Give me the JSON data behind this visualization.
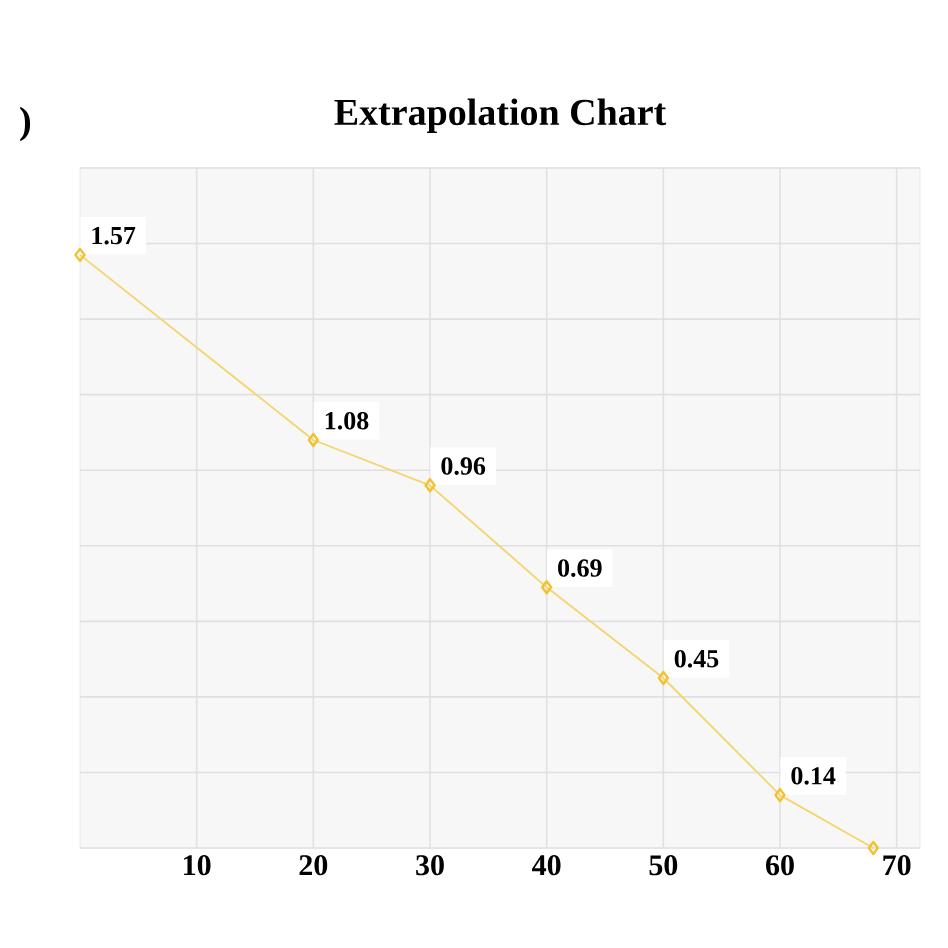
{
  "chart_data": {
    "type": "line",
    "title": "Extrapolation Chart",
    "annotations": [
      ")"
    ],
    "x": [
      0,
      20,
      30,
      40,
      50,
      60,
      68
    ],
    "series": [
      {
        "color": "#f2c12e",
        "values": [
          1.57,
          1.08,
          0.96,
          0.69,
          0.45,
          0.14,
          0
        ],
        "value_labels": [
          "1.57",
          "1.08",
          "0.96",
          "0.69",
          "0.45",
          "0.14",
          null
        ]
      }
    ],
    "xlim": [
      0,
      72
    ],
    "ylim": [
      0,
      1.8
    ],
    "xticks": [
      10,
      20,
      30,
      40,
      50,
      60,
      70
    ],
    "yticks": [
      0,
      0.2,
      0.4,
      0.6,
      0.8,
      1.0,
      1.2,
      1.4,
      1.6,
      1.8
    ],
    "tick_labels": "x",
    "grid": true,
    "marker": "diamond",
    "line_style": "solid"
  }
}
